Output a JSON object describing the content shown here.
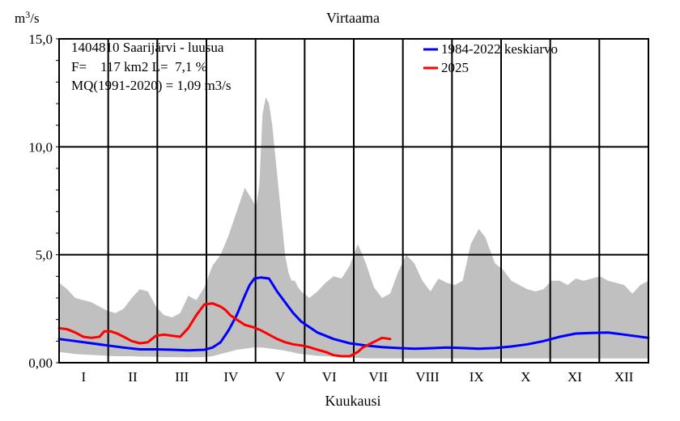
{
  "chart_data": {
    "type": "line",
    "title": "Virtaama",
    "ylabel_base": "m",
    "ylabel_exp": "3",
    "ylabel_suffix": "/s",
    "xlabel": "Kuukausi",
    "ylim": [
      0,
      15
    ],
    "yticks": [
      {
        "value": 0,
        "label": "0,00"
      },
      {
        "value": 5,
        "label": "5,0"
      },
      {
        "value": 10,
        "label": "10,0"
      },
      {
        "value": 15,
        "label": "15,0"
      }
    ],
    "xlim": [
      0,
      365
    ],
    "months": [
      "I",
      "II",
      "III",
      "IV",
      "V",
      "VI",
      "VII",
      "VIII",
      "IX",
      "X",
      "XI",
      "XII"
    ],
    "grid": true,
    "legend_position": "top-right",
    "info_lines": [
      "1404810 Saarijärvi - luusua",
      "F=    117 km2 L=  7,1 %",
      "MQ(1991-2020) = 1,09 m3/s"
    ],
    "envelope": {
      "name": "",
      "color": "#c0c0c0",
      "x": [
        0,
        5,
        10,
        15,
        20,
        25,
        30,
        35,
        40,
        45,
        50,
        55,
        60,
        65,
        70,
        75,
        80,
        85,
        90,
        95,
        100,
        105,
        110,
        115,
        120,
        122,
        124,
        126,
        128,
        130,
        132,
        134,
        136,
        138,
        140,
        142,
        144,
        146,
        148,
        150,
        155,
        160,
        165,
        170,
        175,
        180,
        185,
        190,
        195,
        200,
        205,
        210,
        215,
        220,
        225,
        230,
        235,
        240,
        245,
        250,
        255,
        260,
        262,
        264,
        266,
        268,
        270,
        275,
        280,
        285,
        290,
        295,
        300,
        305,
        310,
        315,
        320,
        325,
        330,
        335,
        340,
        345,
        350,
        355,
        360,
        365
      ],
      "upper": [
        3.7,
        3.4,
        3.0,
        2.9,
        2.8,
        2.6,
        2.4,
        2.3,
        2.5,
        3.0,
        3.4,
        3.3,
        2.6,
        2.2,
        2.1,
        2.3,
        3.1,
        2.9,
        3.5,
        4.5,
        5.0,
        5.9,
        7.0,
        8.1,
        7.5,
        7.2,
        8.2,
        11.5,
        12.3,
        12.0,
        11.0,
        9.5,
        8.0,
        6.5,
        5.0,
        4.2,
        3.8,
        3.8,
        3.5,
        3.3,
        3.0,
        3.3,
        3.7,
        4.0,
        3.9,
        4.5,
        5.5,
        4.6,
        3.5,
        3.0,
        3.2,
        4.2,
        5.0,
        4.6,
        3.8,
        3.3,
        3.9,
        3.7,
        3.6,
        3.8,
        5.5,
        6.2,
        6.0,
        5.8,
        5.4,
        5.0,
        4.6,
        4.3,
        3.8,
        3.6,
        3.4,
        3.3,
        3.4,
        3.8,
        3.8,
        3.6,
        3.9,
        3.8,
        3.9,
        4.0,
        3.8,
        3.7,
        3.6,
        3.2,
        3.6,
        3.8
      ],
      "lower": [
        0.5,
        0.45,
        0.4,
        0.38,
        0.36,
        0.34,
        0.32,
        0.3,
        0.3,
        0.3,
        0.28,
        0.28,
        0.27,
        0.26,
        0.26,
        0.25,
        0.25,
        0.25,
        0.26,
        0.3,
        0.4,
        0.5,
        0.6,
        0.65,
        0.7,
        0.7,
        0.7,
        0.7,
        0.68,
        0.66,
        0.64,
        0.62,
        0.6,
        0.58,
        0.55,
        0.52,
        0.5,
        0.46,
        0.42,
        0.4,
        0.36,
        0.32,
        0.3,
        0.28,
        0.26,
        0.24,
        0.22,
        0.2,
        0.2,
        0.2,
        0.2,
        0.2,
        0.2,
        0.2,
        0.2,
        0.2,
        0.2,
        0.2,
        0.2,
        0.2,
        0.2,
        0.2,
        0.2,
        0.2,
        0.2,
        0.2,
        0.2,
        0.2,
        0.2,
        0.2,
        0.2,
        0.2,
        0.2,
        0.2,
        0.2,
        0.2,
        0.2,
        0.2,
        0.2,
        0.2,
        0.2,
        0.2,
        0.2,
        0.2,
        0.2,
        0.2
      ]
    },
    "series": [
      {
        "name": "1984-2022 keskiarvo",
        "color": "#0000ff",
        "x": [
          0,
          10,
          20,
          30,
          40,
          50,
          60,
          70,
          80,
          90,
          95,
          100,
          105,
          110,
          115,
          118,
          121,
          125,
          130,
          135,
          140,
          145,
          150,
          160,
          170,
          180,
          190,
          200,
          210,
          220,
          230,
          240,
          250,
          260,
          270,
          280,
          290,
          300,
          310,
          320,
          330,
          340,
          350,
          365
        ],
        "y": [
          1.1,
          1.0,
          0.9,
          0.8,
          0.7,
          0.62,
          0.62,
          0.6,
          0.57,
          0.6,
          0.7,
          0.95,
          1.5,
          2.2,
          3.1,
          3.6,
          3.9,
          3.95,
          3.9,
          3.3,
          2.8,
          2.3,
          1.9,
          1.4,
          1.1,
          0.9,
          0.8,
          0.72,
          0.68,
          0.65,
          0.67,
          0.7,
          0.68,
          0.65,
          0.68,
          0.75,
          0.85,
          1.0,
          1.2,
          1.35,
          1.38,
          1.4,
          1.3,
          1.15
        ]
      },
      {
        "name": "2025",
        "color": "#ff0000",
        "x": [
          0,
          5,
          10,
          15,
          20,
          25,
          28,
          32,
          36,
          40,
          45,
          50,
          55,
          60,
          65,
          70,
          75,
          80,
          85,
          90,
          95,
          100,
          103,
          106,
          110,
          115,
          120,
          125,
          130,
          135,
          140,
          145,
          150,
          155,
          160,
          165,
          170,
          175,
          180,
          185,
          188,
          192,
          196,
          200,
          205
        ],
        "y": [
          1.6,
          1.55,
          1.4,
          1.2,
          1.15,
          1.2,
          1.45,
          1.45,
          1.35,
          1.2,
          1.0,
          0.9,
          0.95,
          1.25,
          1.3,
          1.25,
          1.2,
          1.6,
          2.2,
          2.7,
          2.75,
          2.6,
          2.45,
          2.2,
          2.0,
          1.75,
          1.65,
          1.5,
          1.3,
          1.1,
          0.95,
          0.85,
          0.8,
          0.72,
          0.6,
          0.5,
          0.35,
          0.3,
          0.3,
          0.5,
          0.7,
          0.85,
          1.0,
          1.15,
          1.1
        ]
      }
    ]
  }
}
